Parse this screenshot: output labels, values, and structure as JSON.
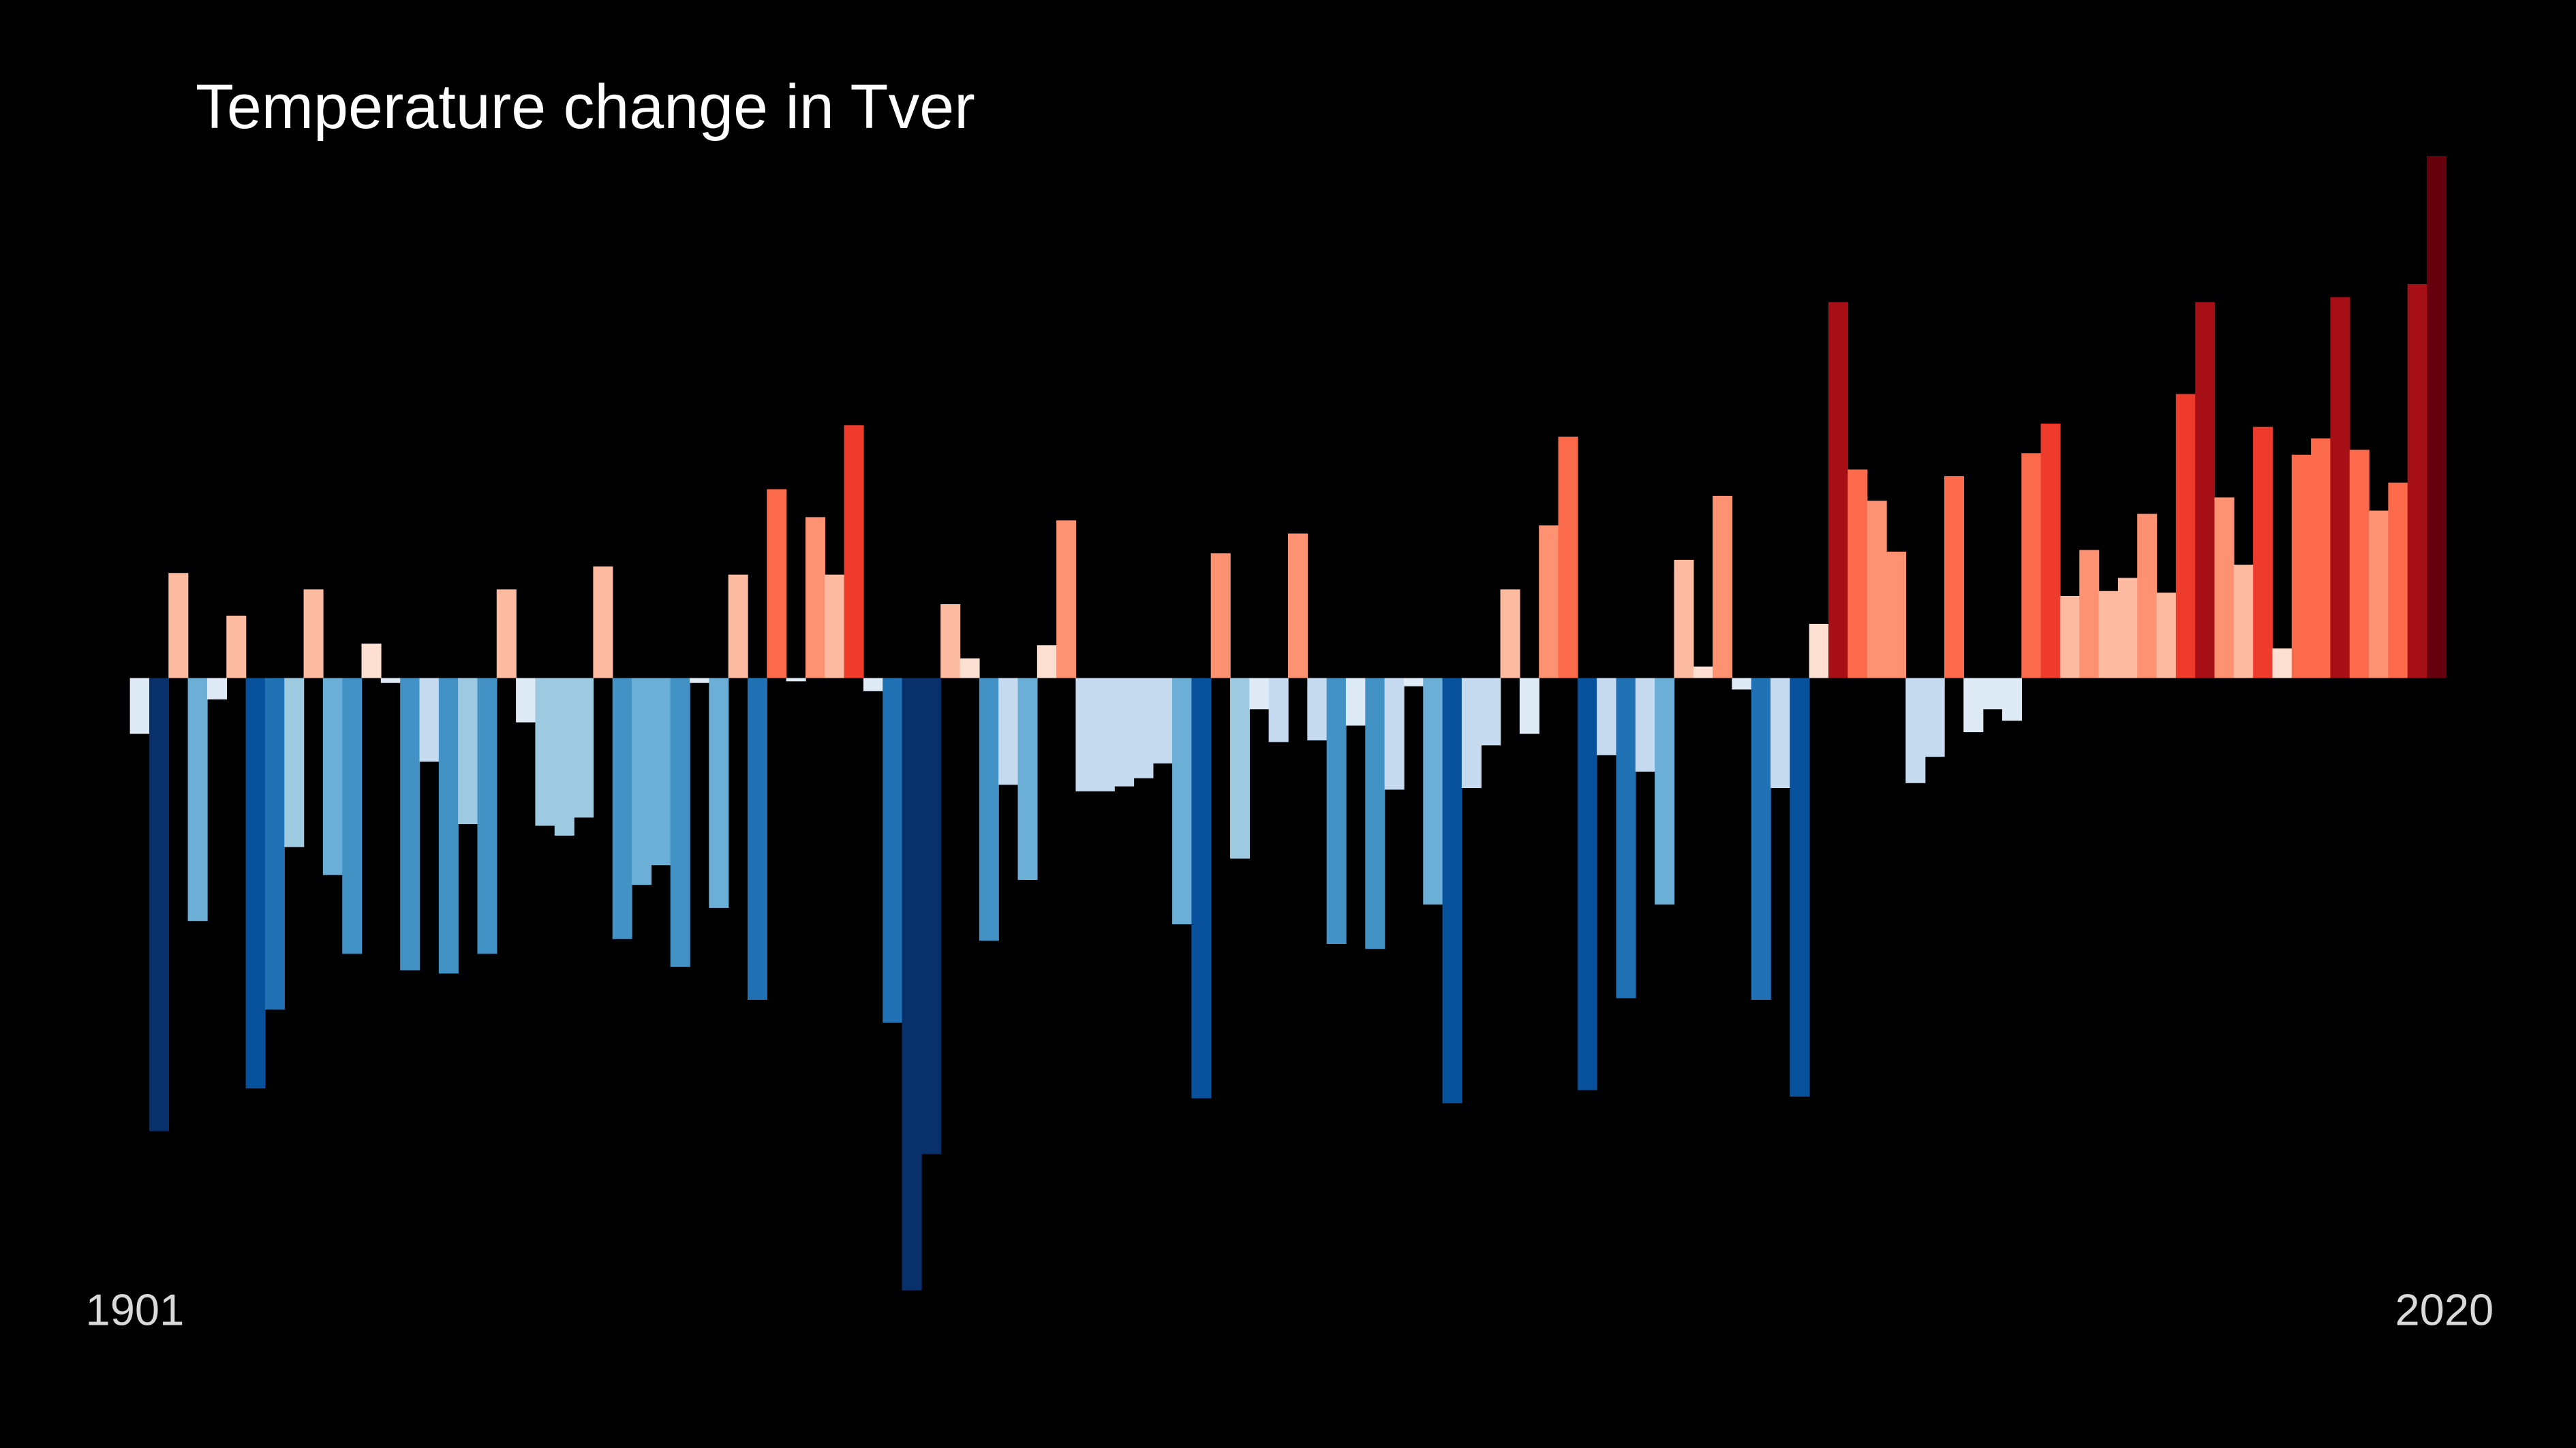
{
  "chart_data": {
    "type": "bar",
    "title": "Temperature change in Tver",
    "categories": [
      "1901",
      null,
      null,
      null,
      null,
      null,
      null,
      null,
      null,
      null,
      null,
      null,
      null,
      null,
      null,
      null,
      null,
      null,
      null,
      null,
      null,
      null,
      null,
      null,
      null,
      null,
      null,
      null,
      null,
      null,
      null,
      null,
      null,
      null,
      null,
      null,
      null,
      null,
      null,
      null,
      null,
      null,
      null,
      null,
      null,
      null,
      null,
      null,
      null,
      null,
      null,
      null,
      null,
      null,
      null,
      null,
      null,
      null,
      null,
      null,
      null,
      null,
      null,
      null,
      null,
      null,
      null,
      null,
      null,
      null,
      null,
      null,
      null,
      null,
      null,
      null,
      null,
      null,
      null,
      null,
      null,
      null,
      null,
      null,
      null,
      null,
      null,
      null,
      null,
      null,
      null,
      null,
      null,
      null,
      null,
      null,
      null,
      null,
      null,
      null,
      null,
      null,
      null,
      null,
      null,
      null,
      null,
      null,
      null,
      null,
      null,
      null,
      null,
      null,
      null,
      null,
      null,
      null,
      null,
      "2020"
    ],
    "values": [
      -0.34,
      -2.76,
      0.64,
      -1.48,
      -0.13,
      0.38,
      -2.5,
      -2.02,
      -1.03,
      0.54,
      -1.2,
      -1.68,
      0.21,
      -0.03,
      -1.78,
      -0.51,
      -1.8,
      -0.89,
      -1.68,
      0.54,
      -0.27,
      -0.9,
      -0.96,
      -0.85,
      0.68,
      -1.59,
      -1.26,
      -1.14,
      -1.76,
      -0.03,
      -1.4,
      0.63,
      -1.96,
      1.15,
      -0.02,
      0.98,
      0.63,
      1.54,
      -0.08,
      -2.1,
      -3.73,
      -2.9,
      0.45,
      0.12,
      -1.6,
      -0.65,
      -1.23,
      0.2,
      0.96,
      -0.69,
      -0.69,
      -0.66,
      -0.61,
      -0.52,
      -1.5,
      -2.56,
      0.76,
      -1.1,
      -0.19,
      -0.39,
      0.88,
      -0.38,
      -1.62,
      -0.29,
      -1.65,
      -0.68,
      -0.05,
      -1.38,
      -2.59,
      -0.67,
      -0.41,
      0.54,
      -0.34,
      0.93,
      1.47,
      -2.51,
      -0.47,
      -1.95,
      -0.57,
      -1.38,
      0.72,
      0.07,
      1.11,
      -0.07,
      -1.96,
      -0.67,
      -2.55,
      0.33,
      2.29,
      1.27,
      1.08,
      0.77,
      -0.64,
      -0.48,
      1.23,
      -0.33,
      -0.19,
      -0.26,
      1.37,
      1.55,
      0.5,
      0.78,
      0.53,
      0.61,
      1.0,
      0.52,
      1.73,
      2.29,
      1.1,
      0.69,
      1.53,
      0.18,
      1.36,
      1.46,
      2.32,
      1.39,
      1.02,
      1.19,
      2.4,
      3.18
    ],
    "ylim": [
      -4.69,
      4.13
    ],
    "clim": [
      -3,
      3
    ],
    "colormap": [
      "#08306b",
      "#08519c",
      "#2171b5",
      "#4292c6",
      "#6baed6",
      "#9ecae1",
      "#c6dbef",
      "#deebf7",
      "#fee0d2",
      "#fcbba1",
      "#fc9272",
      "#fb6a4a",
      "#ef3b2c",
      "#cb181d",
      "#a50f15",
      "#67000d"
    ],
    "background": "#000000"
  }
}
